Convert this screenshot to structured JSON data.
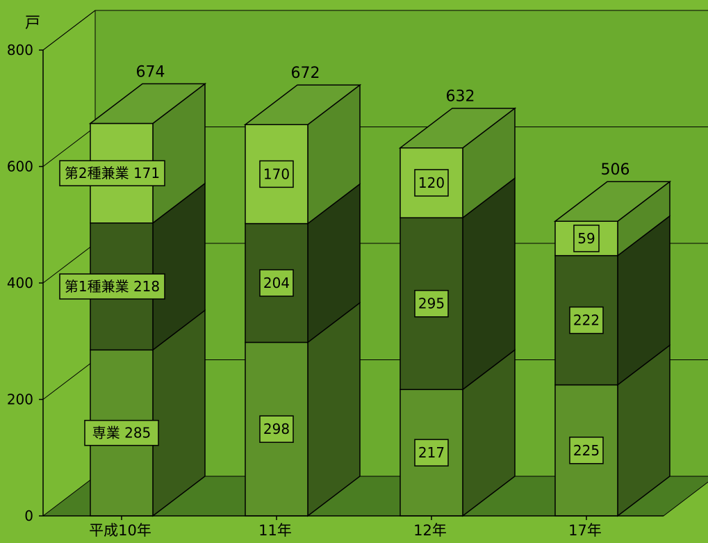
{
  "chart_data": {
    "type": "bar",
    "stacked": true,
    "three_d": true,
    "unit_label": "戸",
    "categories": [
      "平成10年",
      "11年",
      "12年",
      "17年"
    ],
    "series": [
      {
        "name": "専業",
        "values": [
          285,
          298,
          217,
          225
        ]
      },
      {
        "name": "第1種兼業",
        "values": [
          218,
          204,
          295,
          222
        ]
      },
      {
        "name": "第2種兼業",
        "values": [
          171,
          170,
          120,
          59
        ]
      }
    ],
    "totals": [
      674,
      672,
      632,
      506
    ],
    "ylim": [
      0,
      800
    ],
    "yticks": [
      0,
      200,
      400,
      600,
      800
    ],
    "grid": true,
    "legend": "inline labels on first column",
    "colors": {
      "background": "#7aba33",
      "wall": "#6bab2e",
      "floor": "#4a7d22",
      "gridline": "#000000",
      "series_front": [
        "#5e922a",
        "#3b5c1b",
        "#8dc63f"
      ],
      "series_side": [
        "#3a5c1a",
        "#263d12",
        "#568a27"
      ],
      "series_top": [
        "#5e922a",
        "#3b5c1b",
        "#67a030"
      ],
      "label_box": "#8dc63f"
    }
  }
}
